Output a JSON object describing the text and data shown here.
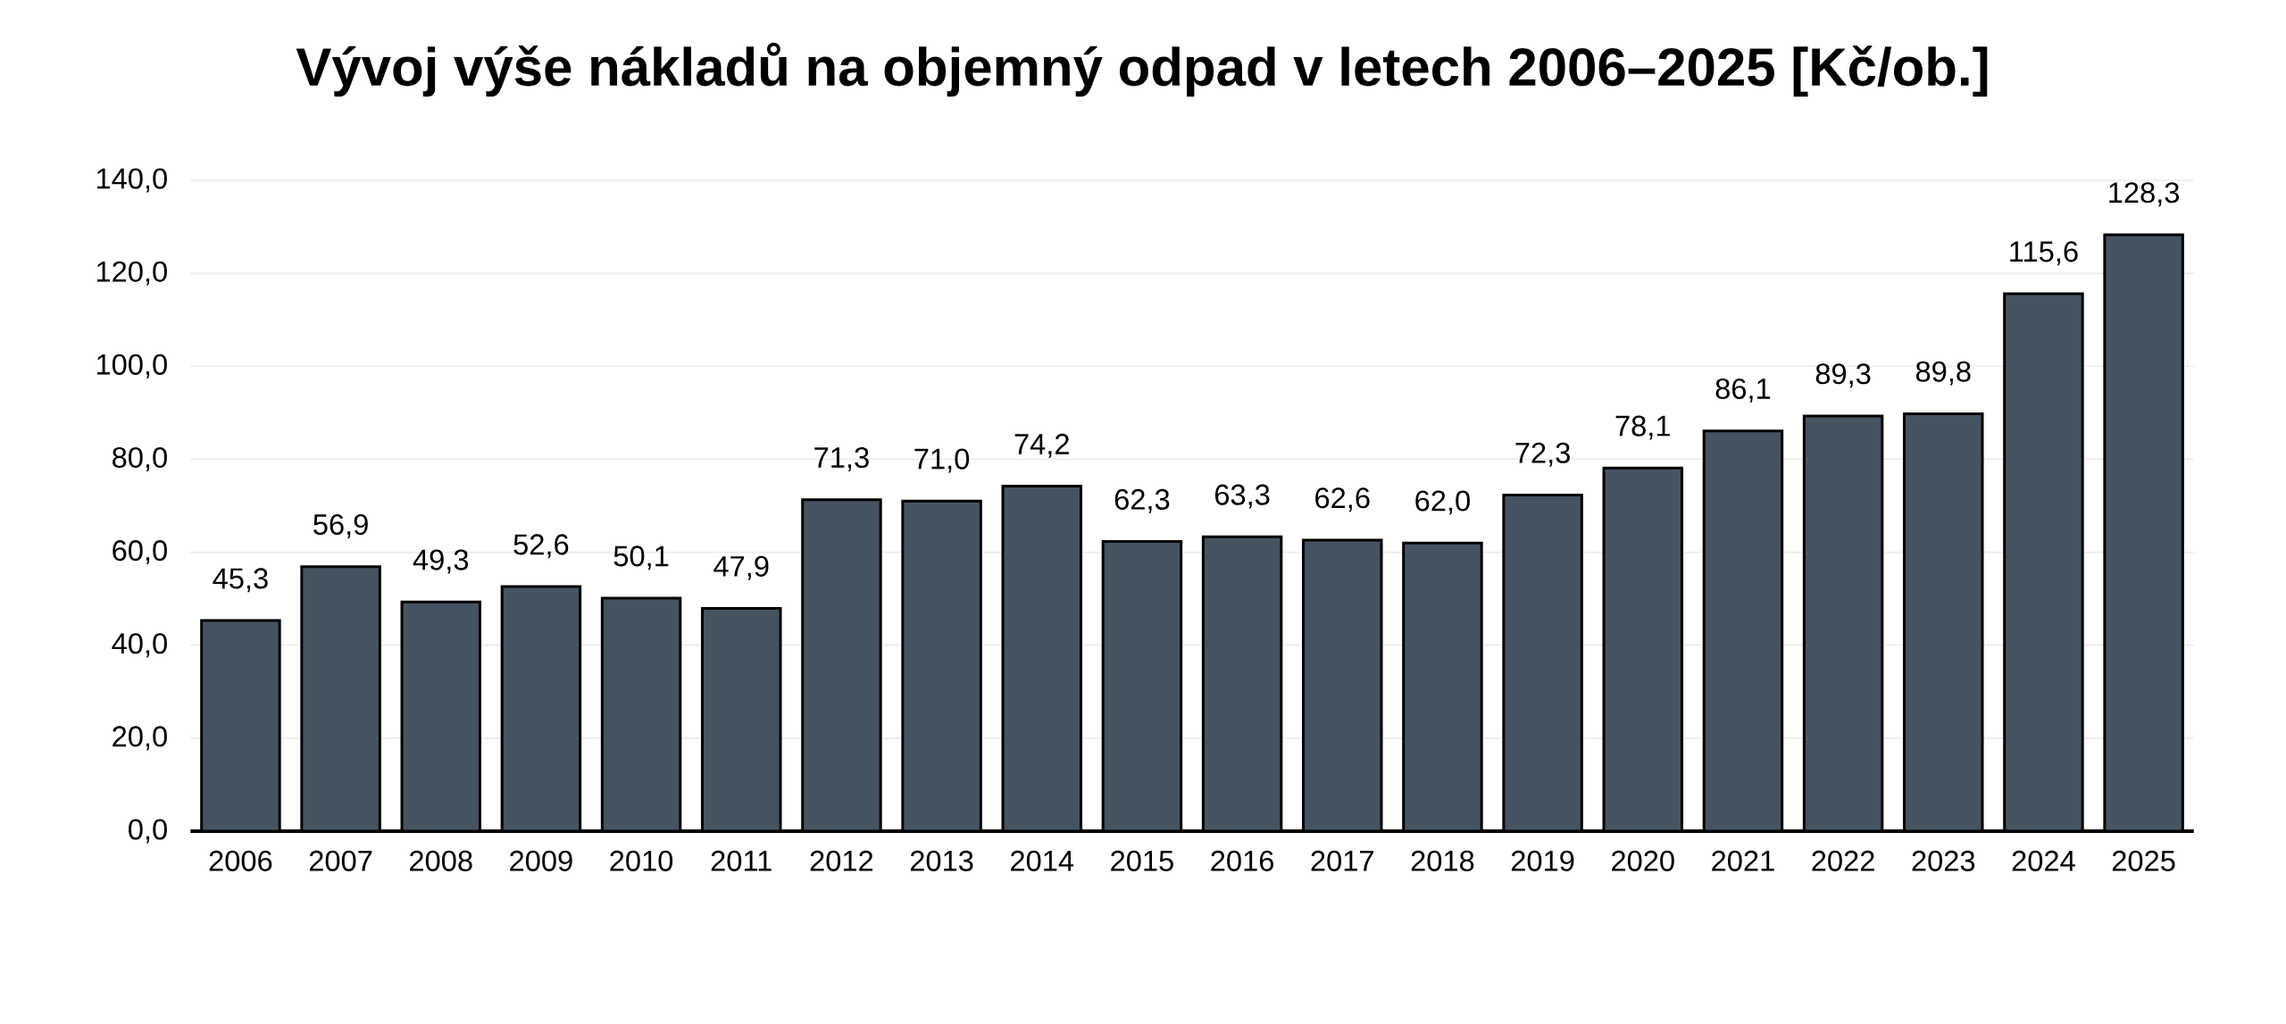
{
  "chart_data": {
    "type": "bar",
    "title": "Vývoj výše nákladů na objemný odpad v letech 2006–2025 [Kč/ob.]",
    "categories": [
      "2006",
      "2007",
      "2008",
      "2009",
      "2010",
      "2011",
      "2012",
      "2013",
      "2014",
      "2015",
      "2016",
      "2017",
      "2018",
      "2019",
      "2020",
      "2021",
      "2022",
      "2023",
      "2024",
      "2025"
    ],
    "values": [
      45.3,
      56.9,
      49.3,
      52.6,
      50.1,
      47.9,
      71.3,
      71.0,
      74.2,
      62.3,
      63.3,
      62.6,
      62.0,
      72.3,
      78.1,
      86.1,
      89.3,
      89.8,
      115.6,
      128.3
    ],
    "value_labels": [
      "45,3",
      "56,9",
      "49,3",
      "52,6",
      "50,1",
      "47,9",
      "71,3",
      "71,0",
      "74,2",
      "62,3",
      "63,3",
      "62,6",
      "62,0",
      "72,3",
      "78,1",
      "86,1",
      "89,3",
      "89,8",
      "115,6",
      "128,3"
    ],
    "color": "#465461",
    "ylim": [
      0,
      140
    ],
    "yticks": [
      {
        "value": 0,
        "label": "0,0"
      },
      {
        "value": 20,
        "label": "20,0"
      },
      {
        "value": 40,
        "label": "40,0"
      },
      {
        "value": 60,
        "label": "60,0"
      },
      {
        "value": 80,
        "label": "80,0"
      },
      {
        "value": 100,
        "label": "100,0"
      },
      {
        "value": 120,
        "label": "120,0"
      },
      {
        "value": 140,
        "label": "140,0"
      }
    ],
    "grid": "y"
  }
}
